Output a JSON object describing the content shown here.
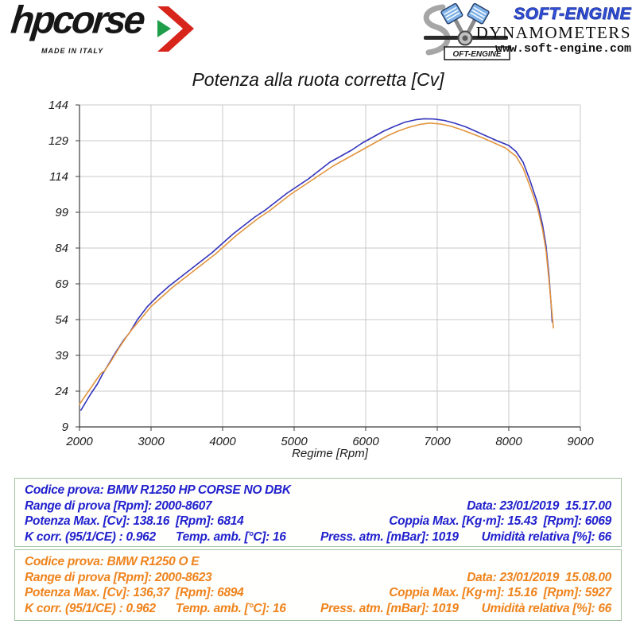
{
  "header": {
    "hpcorse": {
      "brand": "hpcorse",
      "tagline": "MADE IN ITALY"
    },
    "softengine": {
      "brand": "SOFT-ENGINE",
      "subtitle": "DYNAMOMETERS",
      "url": "www.soft-engine.com",
      "logo_text": "OFT-ENGINE"
    }
  },
  "colors": {
    "curve_hpcorse": "#3434bd",
    "curve_oe": "#e2953f",
    "info_text_blue": "#2121cd",
    "info_text_orange": "#ef831c",
    "box_border": "#a3c3a3",
    "grid": "#c9c9c9",
    "axis": "#3c3c3c",
    "hp_arrow_red": "#d8251c",
    "hp_arrow_green": "#1e9e48"
  },
  "chart_data": {
    "type": "line",
    "title": "Potenza alla ruota corretta [Cv]",
    "xlabel": "Regime [Rpm]",
    "ylabel": "",
    "xlim": [
      2000,
      9000
    ],
    "ylim": [
      9,
      144
    ],
    "xticks": [
      2000,
      3000,
      4000,
      5000,
      6000,
      7000,
      8000,
      9000
    ],
    "yticks": [
      9,
      24,
      39,
      54,
      69,
      84,
      99,
      114,
      129,
      144
    ],
    "grid": true,
    "legend": "none",
    "series": [
      {
        "name": "BMW R1250 HP CORSE NO DBK",
        "color": "#3434bd",
        "points": [
          [
            2020,
            16
          ],
          [
            2080,
            19
          ],
          [
            2150,
            22.5
          ],
          [
            2250,
            27
          ],
          [
            2320,
            31
          ],
          [
            2400,
            35
          ],
          [
            2500,
            40
          ],
          [
            2620,
            45.5
          ],
          [
            2700,
            48.5
          ],
          [
            2810,
            54
          ],
          [
            2950,
            59.5
          ],
          [
            3100,
            64
          ],
          [
            3250,
            68
          ],
          [
            3400,
            71.5
          ],
          [
            3550,
            75
          ],
          [
            3700,
            78.5
          ],
          [
            3850,
            82
          ],
          [
            4000,
            86
          ],
          [
            4150,
            90
          ],
          [
            4300,
            93.5
          ],
          [
            4450,
            97
          ],
          [
            4600,
            100
          ],
          [
            4750,
            103.5
          ],
          [
            4900,
            107
          ],
          [
            5050,
            110
          ],
          [
            5200,
            113
          ],
          [
            5350,
            116.5
          ],
          [
            5500,
            120
          ],
          [
            5650,
            122.5
          ],
          [
            5800,
            125
          ],
          [
            5950,
            128
          ],
          [
            6100,
            130.5
          ],
          [
            6250,
            133
          ],
          [
            6400,
            135
          ],
          [
            6550,
            136.8
          ],
          [
            6700,
            137.8
          ],
          [
            6814,
            138.2
          ],
          [
            6950,
            138.1
          ],
          [
            7100,
            137.5
          ],
          [
            7250,
            136.3
          ],
          [
            7400,
            134.8
          ],
          [
            7550,
            132.8
          ],
          [
            7700,
            130.8
          ],
          [
            7850,
            128.8
          ],
          [
            8000,
            127
          ],
          [
            8100,
            124.5
          ],
          [
            8200,
            120
          ],
          [
            8300,
            112
          ],
          [
            8400,
            103
          ],
          [
            8470,
            94
          ],
          [
            8520,
            85
          ],
          [
            8560,
            73
          ],
          [
            8590,
            61
          ],
          [
            8607,
            53
          ]
        ]
      },
      {
        "name": "BMW R1250 O E",
        "color": "#e2953f",
        "points": [
          [
            2000,
            18.5
          ],
          [
            2080,
            22
          ],
          [
            2150,
            25
          ],
          [
            2230,
            28.5
          ],
          [
            2300,
            31.5
          ],
          [
            2350,
            32.5
          ],
          [
            2450,
            37
          ],
          [
            2550,
            42
          ],
          [
            2650,
            46.5
          ],
          [
            2750,
            50.5
          ],
          [
            2850,
            54
          ],
          [
            3000,
            59.5
          ],
          [
            3150,
            63.5
          ],
          [
            3300,
            67.5
          ],
          [
            3450,
            71
          ],
          [
            3600,
            74.5
          ],
          [
            3750,
            78
          ],
          [
            3900,
            81.5
          ],
          [
            4050,
            85.5
          ],
          [
            4200,
            89.5
          ],
          [
            4350,
            93
          ],
          [
            4500,
            96.5
          ],
          [
            4650,
            99.5
          ],
          [
            4800,
            103
          ],
          [
            4950,
            106.5
          ],
          [
            5100,
            109.5
          ],
          [
            5250,
            112.5
          ],
          [
            5400,
            115.5
          ],
          [
            5550,
            118.5
          ],
          [
            5700,
            121
          ],
          [
            5850,
            123.5
          ],
          [
            6000,
            126
          ],
          [
            6150,
            128.5
          ],
          [
            6300,
            131
          ],
          [
            6450,
            133
          ],
          [
            6600,
            134.6
          ],
          [
            6750,
            135.8
          ],
          [
            6894,
            136.4
          ],
          [
            7050,
            136
          ],
          [
            7200,
            135
          ],
          [
            7350,
            133.5
          ],
          [
            7500,
            131.8
          ],
          [
            7650,
            130
          ],
          [
            7800,
            128
          ],
          [
            7950,
            126
          ],
          [
            8100,
            122.5
          ],
          [
            8200,
            117.5
          ],
          [
            8300,
            109.5
          ],
          [
            8400,
            101
          ],
          [
            8470,
            92
          ],
          [
            8520,
            83
          ],
          [
            8560,
            71
          ],
          [
            8600,
            58
          ],
          [
            8623,
            50.5
          ]
        ]
      }
    ]
  },
  "info_boxes": [
    {
      "codice": "Codice prova: BMW R1250 HP CORSE NO DBK",
      "range": "Range di prova [Rpm]: 2000-8607",
      "data": "Data: 23/01/2019  15.17.00",
      "potenza": "Potenza Max. [Cv]: 138.16  [Rpm]: 6814",
      "coppia": "Coppia Max. [Kg·m]: 15.43  [Rpm]: 6069",
      "kcorr": "K corr. (95/1/CE) : 0.962",
      "temp": "Temp. amb. [°C]: 16",
      "press": "Press. atm. [mBar]: 1019",
      "umidita": "Umidità relativa [%]: 66"
    },
    {
      "codice": "Codice prova: BMW R1250 O E",
      "range": "Range di prova [Rpm]: 2000-8623",
      "data": "Data: 23/01/2019  15.08.00",
      "potenza": "Potenza Max. [Cv]: 136,37  [Rpm]: 6894",
      "coppia": "Coppia Max. [Kg·m]: 15.16  [Rpm]: 5927",
      "kcorr": "K corr. (95/1/CE) : 0.962",
      "temp": "Temp. amb. [°C]: 16",
      "press": "Press. atm. [mBar]: 1019",
      "umidita": "Umidità relativa [%]: 66"
    }
  ]
}
